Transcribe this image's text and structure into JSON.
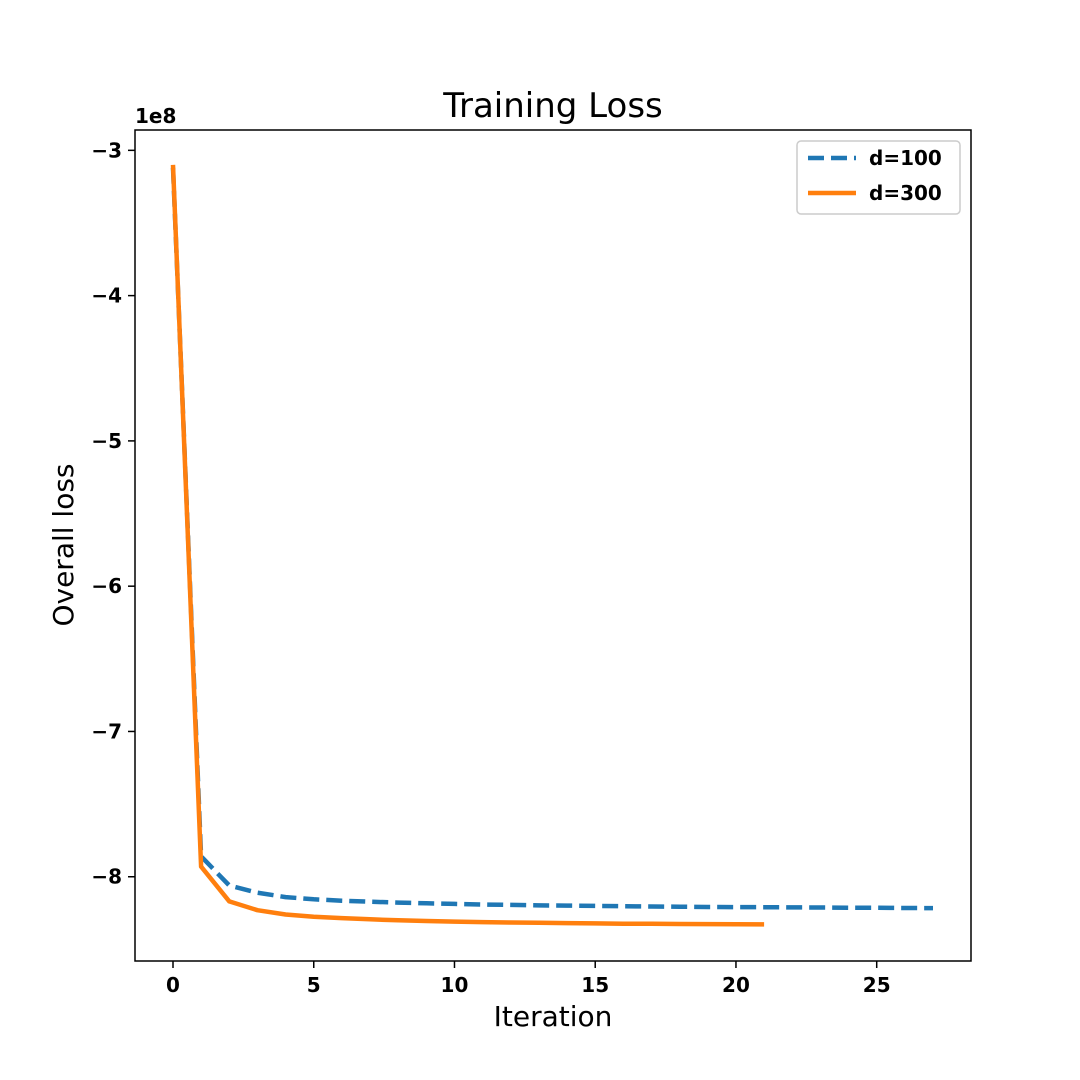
{
  "chart_data": {
    "type": "line",
    "title": "Training Loss",
    "xlabel": "Iteration",
    "ylabel": "Overall loss",
    "y_offset_label": "1e8",
    "y_scale": 100000000,
    "xlim": [
      -1.35,
      28.35
    ],
    "ylim": [
      -8.58,
      -2.86
    ],
    "x_ticks": [
      0,
      5,
      10,
      15,
      20,
      25
    ],
    "x_tick_labels": [
      "0",
      "5",
      "10",
      "15",
      "20",
      "25"
    ],
    "y_ticks": [
      -3,
      -4,
      -5,
      -6,
      -7,
      -8
    ],
    "y_tick_labels": [
      "−3",
      "−4",
      "−5",
      "−6",
      "−7",
      "−8"
    ],
    "grid": false,
    "legend_position": "top-right",
    "series": [
      {
        "name": "d=100",
        "style": "dashed",
        "color": "#1f77b4",
        "x": [
          0,
          1,
          2,
          3,
          4,
          5,
          6,
          7,
          8,
          9,
          10,
          11,
          12,
          13,
          14,
          15,
          16,
          17,
          18,
          19,
          20,
          21,
          22,
          23,
          24,
          25,
          26,
          27
        ],
        "y": [
          -3.12,
          -7.86,
          -8.06,
          -8.11,
          -8.14,
          -8.155,
          -8.165,
          -8.172,
          -8.178,
          -8.183,
          -8.187,
          -8.191,
          -8.194,
          -8.197,
          -8.199,
          -8.201,
          -8.203,
          -8.205,
          -8.206,
          -8.208,
          -8.209,
          -8.21,
          -8.211,
          -8.212,
          -8.213,
          -8.214,
          -8.215,
          -8.216
        ]
      },
      {
        "name": "d=300",
        "style": "solid",
        "color": "#ff7f0e",
        "x": [
          0,
          1,
          2,
          3,
          4,
          5,
          6,
          7,
          8,
          9,
          10,
          11,
          12,
          13,
          14,
          15,
          16,
          17,
          18,
          19,
          20,
          21
        ],
        "y": [
          -3.1,
          -7.93,
          -8.17,
          -8.23,
          -8.26,
          -8.275,
          -8.285,
          -8.293,
          -8.3,
          -8.305,
          -8.309,
          -8.312,
          -8.315,
          -8.317,
          -8.319,
          -8.321,
          -8.323,
          -8.324,
          -8.325,
          -8.326,
          -8.327,
          -8.328
        ]
      }
    ]
  }
}
